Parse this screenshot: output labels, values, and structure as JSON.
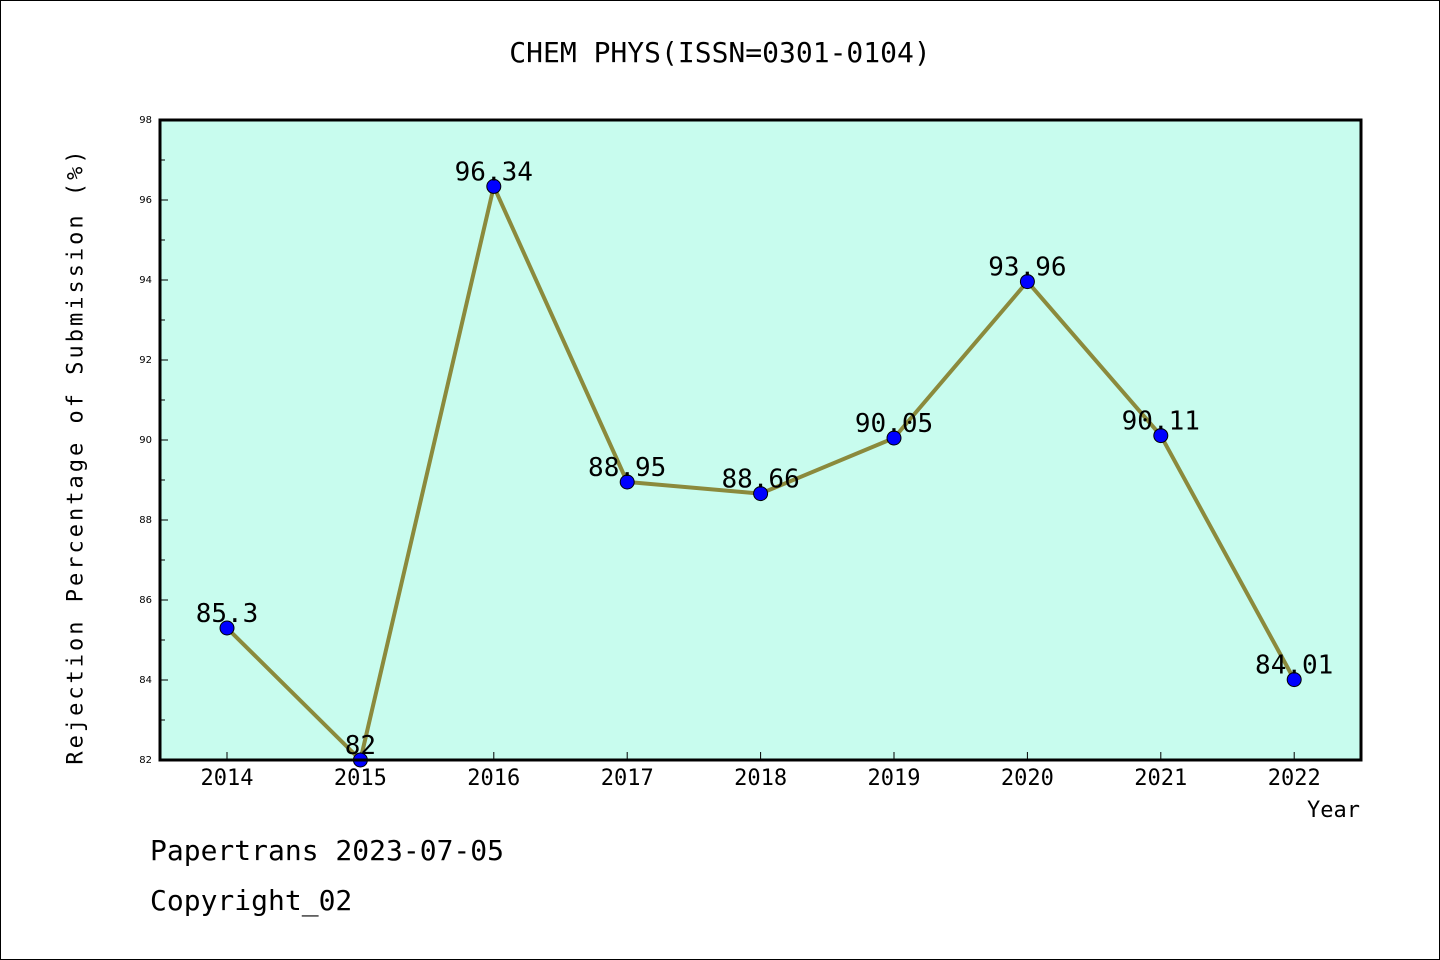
{
  "footer": {
    "line1": "Papertrans 2023-07-05",
    "line2": "Copyright_02"
  },
  "chart_data": {
    "type": "line",
    "title": "CHEM PHYS(ISSN=0301-0104)",
    "xlabel": "Year",
    "ylabel": "Rejection Percentage of Submission (%)",
    "categories": [
      "2014",
      "2015",
      "2016",
      "2017",
      "2018",
      "2019",
      "2020",
      "2021",
      "2022"
    ],
    "values": [
      85.3,
      82,
      96.34,
      88.95,
      88.66,
      90.05,
      93.96,
      90.11,
      84.01
    ],
    "value_labels": [
      "85.3",
      "82",
      "96.34",
      "88.95",
      "88.66",
      "90.05",
      "93.96",
      "90.11",
      "84.01"
    ],
    "ylim": [
      82,
      98
    ],
    "yticks": [
      "82",
      "84",
      "86",
      "88",
      "90",
      "92",
      "94",
      "96",
      "98"
    ],
    "grid": false,
    "colors": {
      "plot_background": "#c8fcee",
      "line": "#8b8a3c",
      "marker": "#0000ff"
    }
  }
}
